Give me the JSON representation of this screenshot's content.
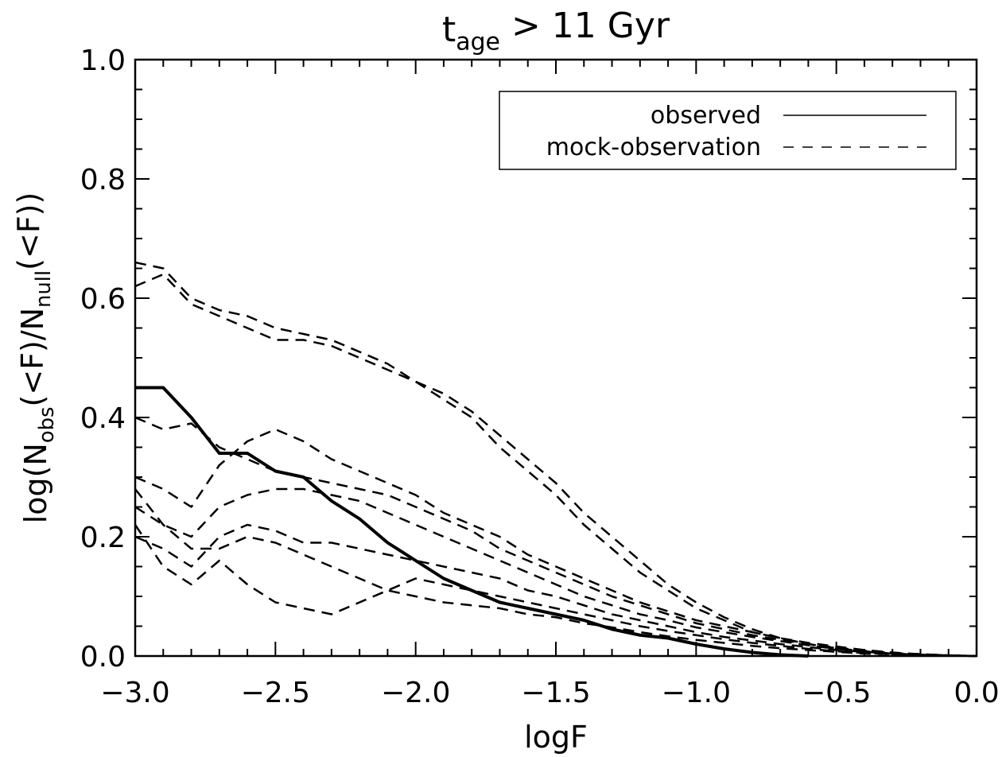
{
  "chart_data": {
    "type": "line",
    "title": [
      {
        "text": "t"
      },
      {
        "text": "age",
        "sub": true
      },
      {
        "text": " > 11 Gyr"
      }
    ],
    "x_label": [
      {
        "text": "logF"
      }
    ],
    "y_label": [
      {
        "text": "log(N"
      },
      {
        "text": "obs",
        "sub": true
      },
      {
        "text": "(<F)/N"
      },
      {
        "text": "null",
        "sub": true
      },
      {
        "text": "(<F))"
      }
    ],
    "xlim": [
      -3.0,
      0.0
    ],
    "ylim": [
      0.0,
      1.0
    ],
    "xticks": [
      {
        "value": -3.0,
        "label": "−3.0"
      },
      {
        "value": -2.5,
        "label": "−2.5"
      },
      {
        "value": -2.0,
        "label": "−2.0"
      },
      {
        "value": -1.5,
        "label": "−1.5"
      },
      {
        "value": -1.0,
        "label": "−1.0"
      },
      {
        "value": -0.5,
        "label": "−0.5"
      },
      {
        "value": 0.0,
        "label": "0.0"
      }
    ],
    "yticks": [
      {
        "value": 0.0,
        "label": "0.0"
      },
      0.2,
      0.4,
      0.6,
      0.8,
      {
        "value": 1.0,
        "label": "1.0"
      }
    ],
    "xminorticks": [
      -2.9,
      -2.8,
      -2.7,
      -2.6,
      -2.4,
      -2.3,
      -2.2,
      -2.1,
      -1.9,
      -1.8,
      -1.7,
      -1.6,
      -1.4,
      -1.3,
      -1.2,
      -1.1,
      -0.9,
      -0.8,
      -0.7,
      -0.6,
      -0.4,
      -0.3,
      -0.2,
      -0.1
    ],
    "yminorticks": [
      0.05,
      0.1,
      0.15,
      0.25,
      0.3,
      0.35,
      0.45,
      0.5,
      0.55,
      0.65,
      0.7,
      0.75,
      0.85,
      0.9,
      0.95
    ],
    "legend": "upper right",
    "x": [
      -3.0,
      -2.9,
      -2.8,
      -2.7,
      -2.6,
      -2.5,
      -2.4,
      -2.3,
      -2.2,
      -2.1,
      -2.0,
      -1.9,
      -1.8,
      -1.7,
      -1.6,
      -1.5,
      -1.4,
      -1.3,
      -1.2,
      -1.1,
      -1.0,
      -0.9,
      -0.8,
      -0.7,
      -0.6,
      -0.5,
      -0.4,
      -0.3,
      -0.2,
      -0.1,
      0.0
    ],
    "series": [
      {
        "name": "observed",
        "color": "#000000",
        "style": "solid",
        "values": [
          0.45,
          0.45,
          0.4,
          0.34,
          0.34,
          0.31,
          0.3,
          0.26,
          0.23,
          0.19,
          0.16,
          0.13,
          0.11,
          0.09,
          0.08,
          0.07,
          0.06,
          0.045,
          0.035,
          0.03,
          0.02,
          0.012,
          0.006,
          0.002,
          0.0,
          null,
          null,
          null,
          null,
          null,
          null
        ]
      },
      {
        "name": "mock-observation",
        "color": "#000000",
        "style": "dashed",
        "lines": [
          [
            0.66,
            0.65,
            0.6,
            0.58,
            0.57,
            0.55,
            0.54,
            0.53,
            0.51,
            0.49,
            0.46,
            0.44,
            0.41,
            0.37,
            0.33,
            0.29,
            0.24,
            0.2,
            0.16,
            0.12,
            0.09,
            0.065,
            0.045,
            0.03,
            0.02,
            0.013,
            0.008,
            0.004,
            0.002,
            0.001,
            0
          ],
          [
            0.62,
            0.64,
            0.59,
            0.57,
            0.55,
            0.53,
            0.53,
            0.52,
            0.5,
            0.48,
            0.46,
            0.43,
            0.4,
            0.35,
            0.31,
            0.27,
            0.22,
            0.18,
            0.14,
            0.11,
            0.08,
            0.06,
            0.04,
            0.03,
            0.02,
            0.012,
            0.007,
            0.004,
            0.002,
            0.001,
            0
          ],
          [
            0.3,
            0.28,
            0.25,
            0.32,
            0.36,
            0.38,
            0.36,
            0.33,
            0.31,
            0.29,
            0.27,
            0.24,
            0.22,
            0.2,
            0.17,
            0.15,
            0.13,
            0.11,
            0.09,
            0.075,
            0.06,
            0.05,
            0.04,
            0.03,
            0.022,
            0.016,
            0.01,
            0.006,
            0.003,
            0.001,
            0
          ],
          [
            0.4,
            0.38,
            0.39,
            0.35,
            0.33,
            0.31,
            0.3,
            0.29,
            0.28,
            0.27,
            0.25,
            0.23,
            0.21,
            0.18,
            0.16,
            0.14,
            0.12,
            0.1,
            0.085,
            0.07,
            0.055,
            0.045,
            0.035,
            0.027,
            0.02,
            0.014,
            0.009,
            0.005,
            0.003,
            0.001,
            0
          ],
          [
            0.25,
            0.22,
            0.2,
            0.25,
            0.27,
            0.28,
            0.28,
            0.27,
            0.26,
            0.24,
            0.22,
            0.2,
            0.18,
            0.16,
            0.14,
            0.12,
            0.1,
            0.085,
            0.07,
            0.06,
            0.048,
            0.04,
            0.032,
            0.025,
            0.018,
            0.012,
            0.008,
            0.005,
            0.003,
            0.001,
            0
          ],
          [
            0.2,
            0.18,
            0.15,
            0.2,
            0.22,
            0.21,
            0.19,
            0.19,
            0.18,
            0.17,
            0.16,
            0.15,
            0.14,
            0.13,
            0.11,
            0.1,
            0.085,
            0.07,
            0.06,
            0.05,
            0.04,
            0.032,
            0.026,
            0.02,
            0.015,
            0.01,
            0.007,
            0.004,
            0.002,
            0.001,
            0
          ],
          [
            0.22,
            0.15,
            0.12,
            0.16,
            0.12,
            0.09,
            0.08,
            0.07,
            0.09,
            0.11,
            0.13,
            0.12,
            0.11,
            0.1,
            0.09,
            0.08,
            0.07,
            0.06,
            0.05,
            0.042,
            0.035,
            0.028,
            0.022,
            0.017,
            0.012,
            0.008,
            0.005,
            0.003,
            0.002,
            0.001,
            0
          ],
          [
            0.28,
            0.22,
            0.18,
            0.18,
            0.2,
            0.19,
            0.17,
            0.15,
            0.13,
            0.11,
            0.1,
            0.09,
            0.085,
            0.08,
            0.07,
            0.065,
            0.055,
            0.048,
            0.04,
            0.033,
            0.027,
            0.022,
            0.017,
            0.013,
            0.01,
            0.007,
            0.004,
            0.003,
            0.002,
            0.001,
            0
          ]
        ]
      }
    ]
  }
}
